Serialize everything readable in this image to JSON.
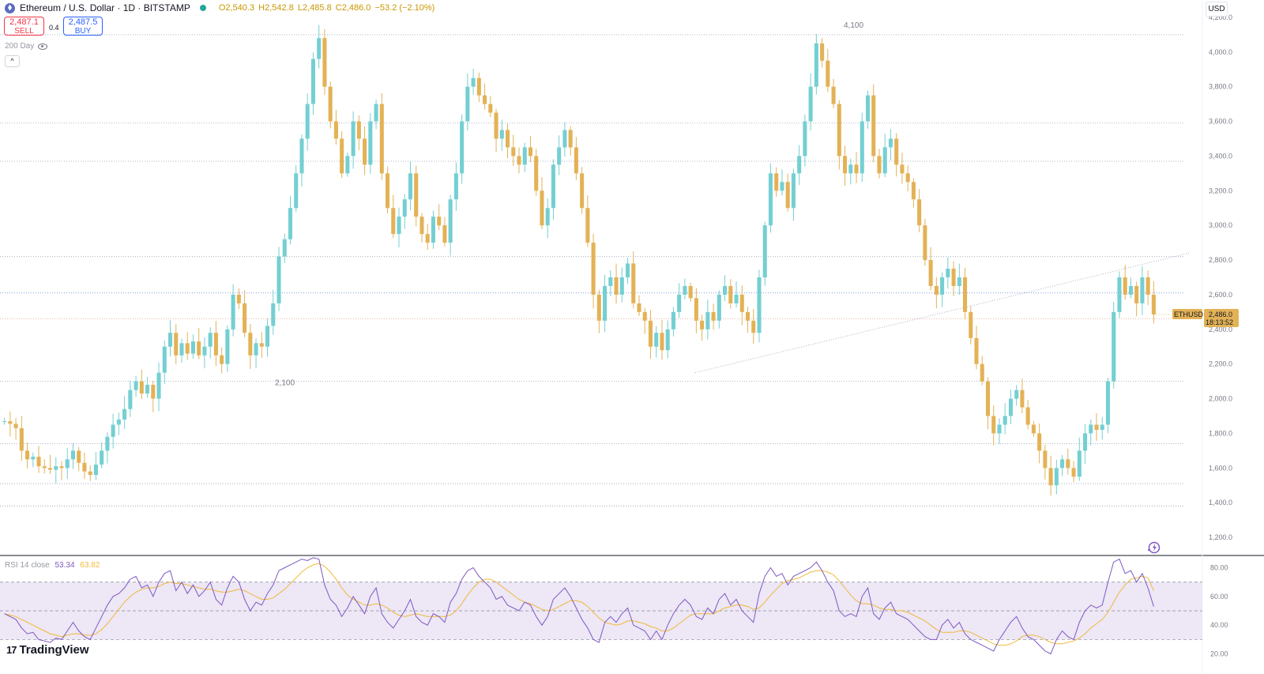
{
  "header": {
    "symbol_title": "Ethereum / U.S. Dollar · 1D · BITSTAMP",
    "ohlc": {
      "open": "O2,540.3",
      "high": "H2,542.8",
      "low": "L2,485.8",
      "close": "C2,486.0",
      "change": "−53.2 (−2.10%)"
    },
    "sell_price": "2,487.1",
    "sell_label": "SELL",
    "buy_price": "2,487.5",
    "buy_label": "BUY",
    "spread": "0.4",
    "indicator_label": "200 Day",
    "collapse_glyph": "^",
    "currency": "USD"
  },
  "colors": {
    "up": "#74cfd2",
    "down": "#e3b256",
    "rsi_line": "#7e57c2",
    "rsi_ma": "#f0b93a",
    "rsi_band": "#ede7f6",
    "price_label": "#e3b256"
  },
  "chart_data": [
    {
      "type": "candlestick",
      "series_name": "ETHUSD",
      "y_axis": {
        "ylim": [
          1100,
          4300
        ],
        "ticks": [
          "1,200.0",
          "1,400.0",
          "1,600.0",
          "1,800.0",
          "2,000.0",
          "2,200.0",
          "2,400.0",
          "2,600.0",
          "2,800.0",
          "3,000.0",
          "3,200.0",
          "3,400.0",
          "3,600.0",
          "3,800.0",
          "4,000.0",
          "4,200.0"
        ]
      },
      "last_price": {
        "symbol": "ETHUSD",
        "price": "2,486.0",
        "countdown": "18:13:52"
      },
      "annotations": [
        {
          "text": "4,100",
          "value": 4100
        },
        {
          "text": "2,100",
          "value": 2100
        }
      ],
      "horizontal_levels": [
        4100,
        3590,
        3370,
        2820,
        2610,
        2460,
        2100,
        1740,
        1510,
        1380
      ],
      "trendline": {
        "from_value": 2150,
        "to_value": 2840
      },
      "closes": [
        1870,
        1855,
        1830,
        1700,
        1650,
        1665,
        1610,
        1600,
        1590,
        1610,
        1600,
        1650,
        1700,
        1630,
        1580,
        1560,
        1620,
        1700,
        1780,
        1850,
        1880,
        1940,
        2050,
        2100,
        2030,
        2080,
        2000,
        2150,
        2300,
        2380,
        2250,
        2320,
        2260,
        2330,
        2250,
        2300,
        2380,
        2250,
        2200,
        2400,
        2600,
        2550,
        2380,
        2250,
        2320,
        2300,
        2420,
        2550,
        2820,
        2920,
        3100,
        3300,
        3500,
        3700,
        3960,
        4080,
        3800,
        3600,
        3500,
        3300,
        3400,
        3600,
        3500,
        3350,
        3600,
        3700,
        3300,
        3100,
        2950,
        3050,
        3150,
        3300,
        3050,
        2950,
        2900,
        3050,
        3000,
        2900,
        3150,
        3300,
        3600,
        3800,
        3850,
        3750,
        3700,
        3650,
        3500,
        3550,
        3450,
        3400,
        3350,
        3450,
        3400,
        3200,
        3000,
        3100,
        3350,
        3450,
        3550,
        3450,
        3300,
        3100,
        2900,
        2600,
        2450,
        2650,
        2700,
        2600,
        2700,
        2780,
        2550,
        2500,
        2450,
        2300,
        2380,
        2280,
        2400,
        2500,
        2600,
        2650,
        2580,
        2450,
        2400,
        2500,
        2450,
        2600,
        2650,
        2550,
        2600,
        2500,
        2450,
        2380,
        2700,
        3000,
        3300,
        3200,
        3250,
        3100,
        3300,
        3400,
        3600,
        3800,
        4050,
        3950,
        3800,
        3700,
        3400,
        3300,
        3350,
        3300,
        3600,
        3750,
        3400,
        3300,
        3450,
        3500,
        3350,
        3300,
        3250,
        3150,
        3000,
        2800,
        2650,
        2600,
        2700,
        2750,
        2650,
        2700,
        2500,
        2350,
        2200,
        2100,
        1900,
        1800,
        1850,
        1900,
        2000,
        2050,
        1950,
        1850,
        1800,
        1700,
        1600,
        1500,
        1600,
        1650,
        1600,
        1550,
        1700,
        1800,
        1850,
        1820,
        1850,
        2100,
        2500,
        2700,
        2600,
        2650,
        2550,
        2700,
        2600,
        2486
      ]
    },
    {
      "type": "line",
      "title": "RSI 14 close",
      "current_values": [
        "53.34",
        "63.82"
      ],
      "ylim": [
        17,
        88
      ],
      "ticks": [
        "20.00",
        "40.00",
        "60.00",
        "80.00"
      ],
      "band": [
        30,
        70
      ],
      "midline": 50,
      "rsi": [
        48,
        46,
        44,
        38,
        34,
        35,
        30,
        29,
        28,
        31,
        30,
        36,
        42,
        36,
        32,
        30,
        38,
        46,
        54,
        60,
        62,
        66,
        72,
        74,
        66,
        68,
        60,
        70,
        76,
        78,
        64,
        70,
        62,
        68,
        60,
        64,
        70,
        58,
        54,
        66,
        74,
        70,
        58,
        50,
        56,
        54,
        62,
        68,
        78,
        80,
        82,
        84,
        86,
        85,
        87,
        86,
        68,
        58,
        54,
        46,
        52,
        60,
        54,
        48,
        60,
        66,
        48,
        42,
        38,
        44,
        50,
        58,
        46,
        42,
        40,
        48,
        46,
        42,
        56,
        62,
        72,
        78,
        80,
        74,
        70,
        66,
        58,
        60,
        54,
        52,
        50,
        56,
        54,
        46,
        40,
        46,
        58,
        62,
        66,
        60,
        52,
        44,
        38,
        30,
        28,
        42,
        46,
        42,
        48,
        52,
        40,
        38,
        36,
        30,
        36,
        30,
        40,
        48,
        54,
        58,
        54,
        46,
        44,
        52,
        48,
        58,
        62,
        54,
        58,
        50,
        46,
        42,
        62,
        74,
        80,
        74,
        76,
        68,
        74,
        76,
        78,
        80,
        84,
        78,
        70,
        64,
        50,
        46,
        48,
        46,
        60,
        66,
        48,
        44,
        52,
        56,
        48,
        46,
        44,
        40,
        36,
        32,
        30,
        30,
        40,
        44,
        38,
        42,
        34,
        30,
        28,
        26,
        24,
        22,
        30,
        36,
        42,
        46,
        38,
        32,
        30,
        26,
        22,
        20,
        30,
        36,
        32,
        30,
        42,
        50,
        54,
        52,
        54,
        70,
        84,
        86,
        76,
        78,
        70,
        76,
        66,
        53
      ],
      "ma": [
        48,
        47,
        46,
        44,
        42,
        40,
        38,
        36,
        34,
        33,
        32,
        33,
        34,
        34,
        33,
        33,
        34,
        37,
        41,
        46,
        51,
        56,
        60,
        63,
        65,
        66,
        66,
        67,
        69,
        70,
        69,
        69,
        68,
        67,
        66,
        65,
        65,
        64,
        63,
        63,
        64,
        65,
        64,
        62,
        60,
        58,
        58,
        59,
        62,
        65,
        69,
        73,
        77,
        80,
        82,
        83,
        81,
        77,
        72,
        66,
        61,
        58,
        56,
        54,
        54,
        55,
        54,
        52,
        49,
        47,
        46,
        47,
        48,
        47,
        46,
        46,
        46,
        46,
        47,
        50,
        55,
        61,
        66,
        70,
        72,
        72,
        70,
        67,
        64,
        61,
        58,
        56,
        55,
        53,
        51,
        50,
        51,
        53,
        55,
        57,
        57,
        56,
        53,
        49,
        45,
        42,
        41,
        40,
        41,
        43,
        43,
        42,
        41,
        39,
        38,
        36,
        36,
        38,
        41,
        44,
        47,
        48,
        48,
        48,
        48,
        50,
        52,
        53,
        54,
        54,
        53,
        51,
        52,
        56,
        61,
        65,
        69,
        71,
        72,
        73,
        75,
        77,
        78,
        78,
        77,
        75,
        71,
        66,
        61,
        57,
        55,
        55,
        54,
        52,
        51,
        51,
        50,
        50,
        49,
        47,
        45,
        43,
        40,
        37,
        35,
        35,
        35,
        36,
        36,
        35,
        33,
        31,
        29,
        27,
        26,
        26,
        27,
        29,
        32,
        33,
        33,
        32,
        30,
        28,
        27,
        27,
        28,
        29,
        31,
        34,
        38,
        41,
        44,
        49,
        56,
        63,
        68,
        72,
        73,
        74,
        73,
        64
      ]
    }
  ],
  "footer": {
    "brand": "TradingView",
    "brand_mark": "17"
  }
}
